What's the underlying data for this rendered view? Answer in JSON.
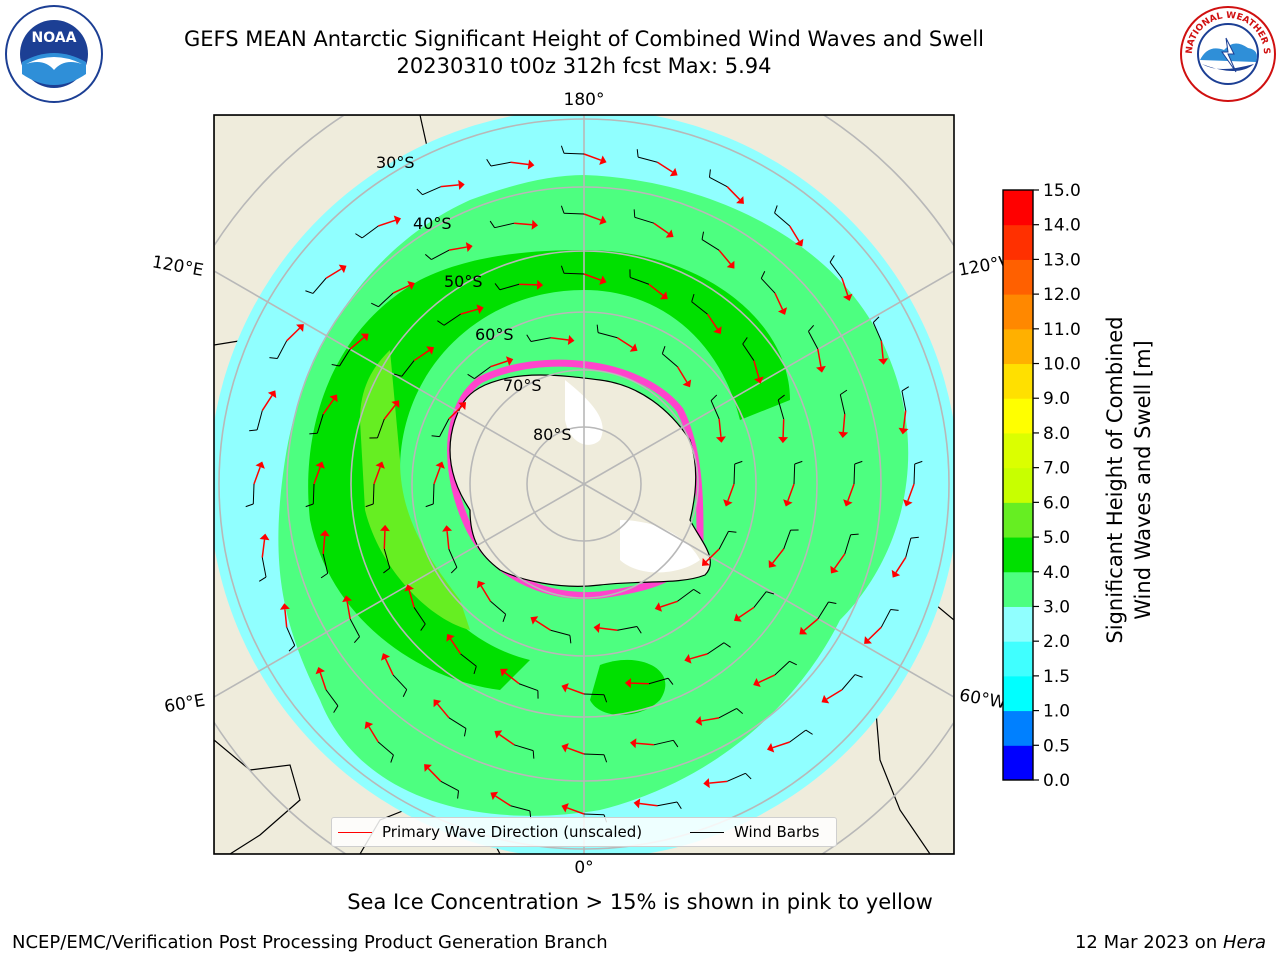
{
  "title": {
    "line1": "GEFS MEAN Antarctic Significant Height of Combined Wind Waves and Swell",
    "line2": "20230310 t00z 312h fcst   Max: 5.94"
  },
  "logos": {
    "left": "noaa-logo",
    "right": "nws-logo",
    "left_text": "NOAA",
    "right_text": "NATIONAL WEATHER SERVICE"
  },
  "map": {
    "projection": "south-polar-stereographic",
    "longitude_labels": {
      "top": "180°",
      "bottom": "0°",
      "upper_left": "120°E",
      "lower_left": "60°E",
      "upper_right": "120°W",
      "lower_right": "60°W"
    },
    "latitude_labels": [
      "30°S",
      "40°S",
      "50°S",
      "60°S",
      "70°S",
      "80°S"
    ],
    "colors": {
      "land": "#efecdc",
      "ocean_low": "#80ffff",
      "ocean_mid": "#4dff80",
      "ocean_high": "#00e000",
      "ocean_peak": "#66ee22",
      "sea_ice": "#ff44cc",
      "arrow": "#ff0000",
      "barb": "#000000",
      "grid": "#b8b8b8"
    }
  },
  "colorbar": {
    "label_line1": "Significant Height of Combined",
    "label_line2": "Wind Waves and Swell [m]",
    "ticks": [
      "0.0",
      "0.5",
      "1.0",
      "1.5",
      "2.0",
      "3.0",
      "4.0",
      "5.0",
      "6.0",
      "7.0",
      "8.0",
      "9.0",
      "10.0",
      "11.0",
      "12.0",
      "13.0",
      "14.0",
      "15.0"
    ],
    "colors": [
      "#0000ff",
      "#0080ff",
      "#00ffff",
      "#40ffff",
      "#90ffff",
      "#4dff80",
      "#00e000",
      "#66ee22",
      "#c8ff00",
      "#dbff00",
      "#ffff00",
      "#ffe000",
      "#ffb000",
      "#ff8800",
      "#ff6000",
      "#ff3000",
      "#ff0000"
    ]
  },
  "legend": {
    "arrow_label": "Primary Wave Direction (unscaled)",
    "barb_label": "Wind Barbs"
  },
  "caption": "Sea Ice Concentration > 15% is shown in pink to yellow",
  "footer": {
    "left": "NCEP/EMC/Verification Post Processing Product Generation Branch",
    "right_prefix": "12 Mar 2023 on ",
    "right_italic": "Hera"
  }
}
